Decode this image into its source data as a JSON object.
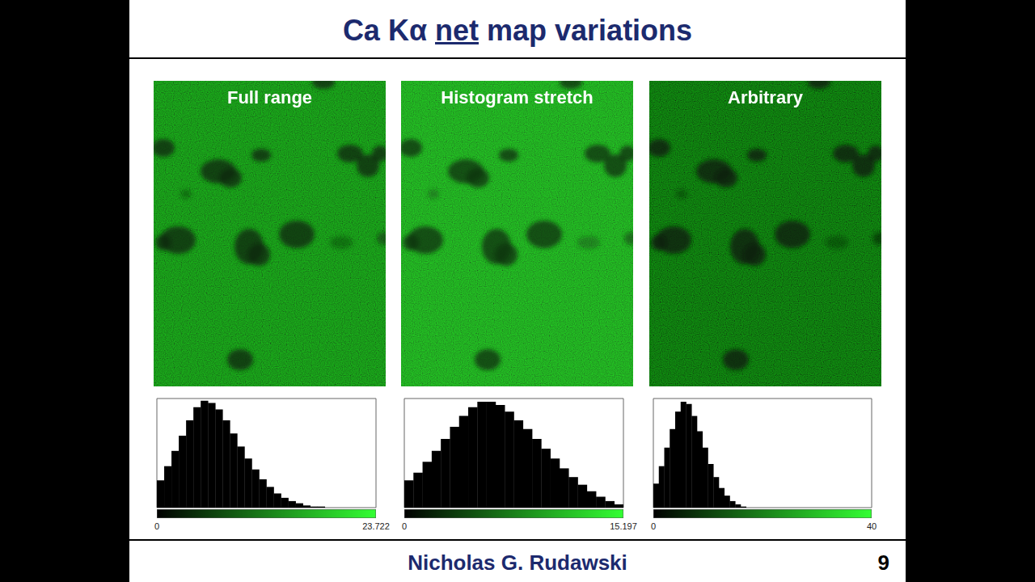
{
  "slide": {
    "title": "Ca Kα net map variations",
    "underlined": "net",
    "author": "Nicholas G. Rudawski",
    "page": 9
  },
  "chart_data": [
    {
      "type": "histogram",
      "title": "Full range",
      "color": "#000000",
      "bins": [
        0,
        0.791,
        1.581,
        2.372,
        3.163,
        3.954,
        4.744,
        5.535,
        6.326,
        7.117,
        7.907,
        8.698,
        9.489,
        10.28,
        11.07,
        11.861,
        12.652,
        13.442,
        14.233,
        15.024,
        15.815,
        16.605,
        17.396,
        18.187,
        18.978,
        19.768,
        20.559,
        21.35,
        22.141,
        22.931,
        23.722
      ],
      "values": [
        25,
        38,
        52,
        66,
        80,
        92,
        98,
        96,
        90,
        80,
        68,
        56,
        45,
        35,
        26,
        19,
        13,
        9,
        6,
        4,
        2,
        1,
        1,
        0,
        0,
        0,
        0,
        0,
        0,
        0
      ],
      "xlim": [
        0,
        23.722
      ],
      "xticks": [
        0,
        23.722
      ],
      "ylim": [
        0,
        100
      ],
      "grid": false,
      "tick_labels": "x"
    },
    {
      "type": "histogram",
      "title": "Histogram stretch",
      "color": "#000000",
      "bins": [
        0,
        0.633,
        1.266,
        1.9,
        2.533,
        3.166,
        3.799,
        4.432,
        5.066,
        5.699,
        6.332,
        6.965,
        7.599,
        8.232,
        8.865,
        9.498,
        10.131,
        10.765,
        11.398,
        12.031,
        12.664,
        13.297,
        13.931,
        14.564,
        15.197
      ],
      "values": [
        25,
        32,
        42,
        52,
        63,
        74,
        84,
        92,
        97,
        97,
        94,
        88,
        80,
        72,
        63,
        54,
        45,
        36,
        28,
        21,
        15,
        10,
        6,
        3
      ],
      "xlim": [
        0,
        15.197
      ],
      "xticks": [
        0,
        15.197
      ],
      "ylim": [
        0,
        100
      ],
      "grid": false,
      "tick_labels": "x"
    },
    {
      "type": "histogram",
      "title": "Arbitrary",
      "color": "#000000",
      "bins": [
        0,
        1,
        2,
        3,
        4,
        5,
        6,
        7,
        8,
        9,
        10,
        11,
        12,
        13,
        14,
        15,
        16,
        17,
        18,
        19,
        20,
        21,
        22,
        23,
        24,
        25,
        26,
        27,
        28,
        29,
        30,
        31,
        32,
        33,
        34,
        35,
        36,
        37,
        38,
        39,
        40
      ],
      "values": [
        22,
        38,
        55,
        72,
        88,
        97,
        95,
        84,
        70,
        55,
        40,
        28,
        18,
        11,
        6,
        3,
        1,
        0,
        0,
        0,
        0,
        0,
        0,
        0,
        0,
        0,
        0,
        0,
        0,
        0,
        0,
        0,
        0,
        0,
        0,
        0,
        0,
        0,
        0,
        0
      ],
      "xlim": [
        0,
        40
      ],
      "xticks": [
        0,
        40
      ],
      "ylim": [
        0,
        100
      ],
      "grid": false,
      "tick_labels": "x"
    }
  ]
}
